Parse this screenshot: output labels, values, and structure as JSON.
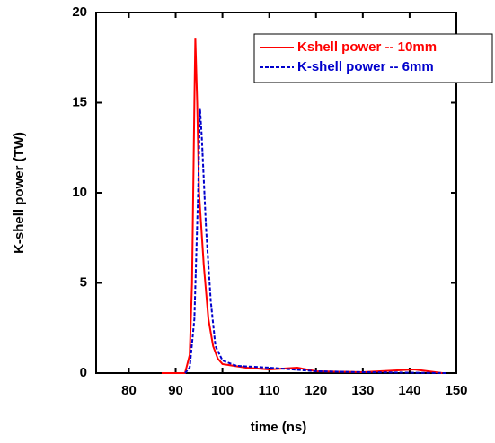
{
  "chart_data": {
    "type": "line",
    "xlabel": "time (ns)",
    "ylabel": "K-shell power (TW)",
    "xlim": [
      73,
      150
    ],
    "ylim": [
      0,
      20
    ],
    "xticks": [
      80,
      90,
      100,
      110,
      120,
      130,
      140,
      150
    ],
    "yticks": [
      0,
      5,
      10,
      15,
      20
    ],
    "legend": "upper right",
    "series": [
      {
        "name": "Kshell power -- 10mm",
        "color": "#ff0000",
        "dash": "solid",
        "x": [
          87,
          92,
          93,
          93.5,
          94,
          94.2,
          94.6,
          95,
          96,
          97,
          98,
          99,
          100,
          105,
          110,
          116,
          120,
          130,
          141,
          147
        ],
        "values": [
          0,
          0,
          1,
          5,
          15,
          18.6,
          15,
          10,
          6,
          3,
          1.5,
          0.8,
          0.5,
          0.3,
          0.2,
          0.3,
          0.1,
          0.05,
          0.2,
          0
        ]
      },
      {
        "name": "K-shell power -- 6mm",
        "color": "#0000cc",
        "dash": "dashed",
        "x": [
          92,
          93,
          94,
          94.8,
          95.2,
          95.6,
          96.5,
          97.5,
          98.5,
          100,
          103,
          110,
          120,
          130,
          148
        ],
        "values": [
          0,
          0.3,
          3,
          10,
          14.7,
          13,
          8,
          4,
          1.5,
          0.7,
          0.4,
          0.3,
          0.1,
          0.05,
          0
        ]
      }
    ]
  }
}
